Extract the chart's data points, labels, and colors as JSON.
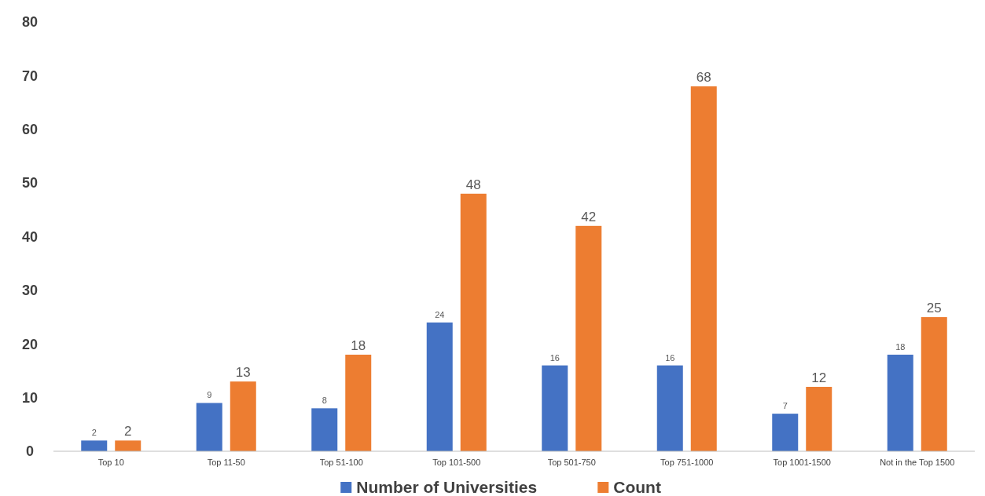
{
  "chart_data": {
    "type": "bar",
    "categories": [
      "Top 10",
      "Top 11-50",
      "Top 51-100",
      "Top 101-500",
      "Top 501-750",
      "Top 751-1000",
      "Top 1001-1500",
      "Not in the Top 1500"
    ],
    "series": [
      {
        "name": "Number of Universities",
        "color": "#4472c4",
        "values": [
          2,
          9,
          8,
          24,
          16,
          16,
          7,
          18
        ]
      },
      {
        "name": "Count",
        "color": "#ed7d31",
        "values": [
          2,
          13,
          18,
          48,
          42,
          68,
          12,
          25
        ]
      }
    ],
    "ylim": [
      0,
      80
    ],
    "yticks": [
      0,
      10,
      20,
      30,
      40,
      50,
      60,
      70,
      80
    ],
    "grid": false,
    "legend": "bottom",
    "data_labels": true
  }
}
